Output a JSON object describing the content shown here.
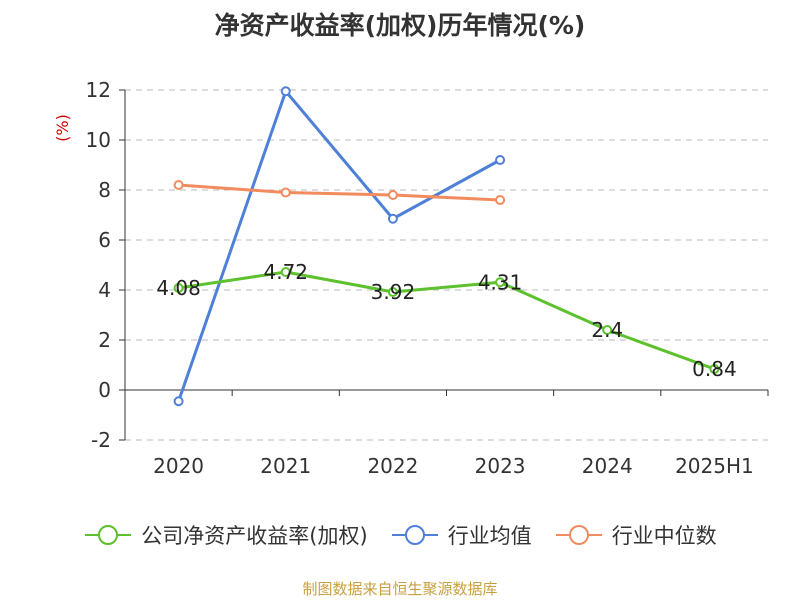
{
  "title": "净资产收益率(加权)历年情况(%)",
  "source": "制图数据来自恒生聚源数据库",
  "colors": {
    "company": "#5cc12c",
    "industry_avg": "#4f80d8",
    "industry_median": "#f28b5e",
    "axis": "#333333",
    "grid": "#bbbbbb",
    "ylabel": "#cc0000"
  },
  "chart_data": {
    "type": "line",
    "title": "净资产收益率(加权)历年情况(%)",
    "ylabel": "(%)",
    "xlabel": "",
    "categories": [
      "2020",
      "2021",
      "2022",
      "2023",
      "2024",
      "2025H1"
    ],
    "ylim": [
      -2,
      12
    ],
    "yticks": [
      -2,
      0,
      2,
      4,
      6,
      8,
      10,
      12
    ],
    "grid": true,
    "legend_position": "bottom",
    "series": [
      {
        "name": "公司净资产收益率(加权)",
        "color": "#5cc12c",
        "values": [
          4.08,
          4.72,
          3.92,
          4.31,
          2.4,
          0.84
        ],
        "labels": [
          "4.08",
          "4.72",
          "3.92",
          "4.31",
          "2.4",
          "0.84"
        ]
      },
      {
        "name": "行业均值",
        "color": "#4f80d8",
        "values": [
          -0.45,
          11.95,
          6.85,
          9.2,
          null,
          null
        ]
      },
      {
        "name": "行业中位数",
        "color": "#f28b5e",
        "values": [
          8.2,
          7.9,
          7.8,
          7.6,
          null,
          null
        ]
      }
    ]
  }
}
